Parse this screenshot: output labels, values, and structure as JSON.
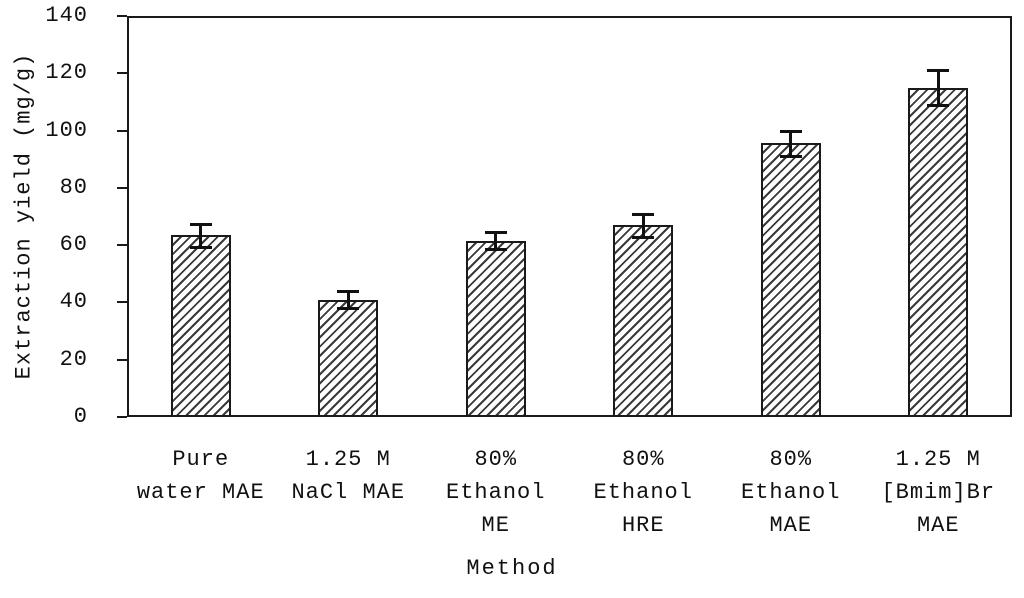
{
  "chart_data": {
    "type": "bar",
    "title": "",
    "xlabel": "Method",
    "ylabel": "Extraction yield (mg/g)",
    "categories": [
      "Pure\nwater MAE",
      "1.25 M\nNaCl MAE",
      "80%\nEthanol\nME",
      "80%\nEthanol\nHRE",
      "80%\nEthanol\nMAE",
      "1.25 M\n[Bmim]Br\nMAE"
    ],
    "values": [
      63.5,
      41,
      61.5,
      67,
      95.5,
      115
    ],
    "errors": [
      4,
      3,
      3,
      4,
      4.5,
      6
    ],
    "ylim": [
      0,
      140
    ],
    "yticks": [
      0,
      20,
      40,
      60,
      80,
      100,
      120,
      140
    ],
    "grid": false,
    "legend": false,
    "bar_fill": "diagonal-hatch",
    "bar_color": "#ffffff",
    "hatch_color": "#3a3a3a",
    "axis_color": "#1a1a1a",
    "text_color": "#111111",
    "background_color": "#ffffff"
  }
}
